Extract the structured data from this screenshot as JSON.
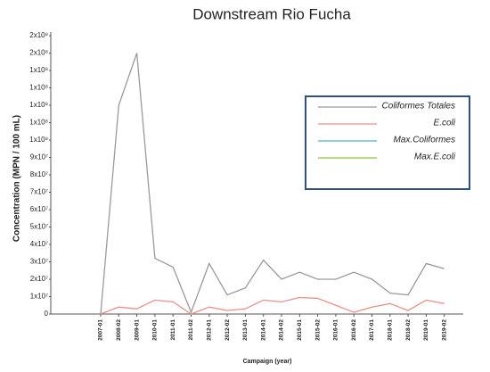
{
  "chart_data": {
    "type": "line",
    "title": "Downstream Rio Fucha",
    "x_label": "Campaign (year)",
    "y_label": "Concentration (MPN / 100 mL)",
    "categories": [
      "2007-01",
      "2008-02",
      "2009-01",
      "2010-01",
      "2011-01",
      "2011-02",
      "2012-01",
      "2012-02",
      "2013-01",
      "2014-01",
      "2014-02",
      "2015-01",
      "2015-02",
      "2016-01",
      "2016-02",
      "2017-01",
      "2018-01",
      "2018-02",
      "2019-01",
      "2019-02"
    ],
    "series": [
      {
        "name": "Coliformes Totales",
        "color": "#9a9a9a",
        "values": [
          0,
          120000000,
          150000000,
          32000000,
          27000000,
          1000000,
          29000000,
          11000000,
          15000000,
          31000000,
          20000000,
          24000000,
          20000000,
          20000000,
          24000000,
          20000000,
          12000000,
          11000000,
          29000000,
          26000000
        ]
      },
      {
        "name": "E.coli",
        "color": "#e8908c",
        "values": [
          0,
          4000000,
          3000000,
          8000000,
          7000000,
          0,
          4000000,
          2000000,
          3000000,
          8000000,
          7000000,
          9500000,
          9000000,
          5000000,
          1000000,
          4000000,
          6000000,
          2000000,
          8000000,
          6000000
        ]
      },
      {
        "name": "Max.Coliformes",
        "color": "#4fb3c4",
        "values": [
          null,
          null,
          null,
          null,
          null,
          null,
          null,
          null,
          null,
          null,
          null,
          null,
          null,
          null,
          null,
          null,
          null,
          null,
          null,
          null
        ]
      },
      {
        "name": "Max.E.coli",
        "color": "#8cc63f",
        "values": [
          null,
          null,
          null,
          null,
          null,
          null,
          null,
          null,
          null,
          null,
          null,
          null,
          null,
          null,
          null,
          null,
          null,
          null,
          null,
          null
        ]
      }
    ],
    "ylim": [
      0,
      160000000
    ],
    "yticks": [
      0,
      {
        "value": 10000000,
        "label": "1x10⁷"
      },
      {
        "value": 20000000,
        "label": "2x10⁷"
      },
      {
        "value": 30000000,
        "label": "3x10⁷"
      },
      {
        "value": 40000000,
        "label": "4x10⁷"
      },
      {
        "value": 50000000,
        "label": "5x10⁷"
      },
      {
        "value": 60000000,
        "label": "6x10⁷"
      },
      {
        "value": 70000000,
        "label": "7x10⁷"
      },
      {
        "value": 80000000,
        "label": "8x10⁷"
      },
      {
        "value": 90000000,
        "label": "9x10⁷"
      },
      {
        "value": 100000000,
        "label": "1x10⁸"
      },
      {
        "value": 110000000,
        "label": "1x10⁸"
      },
      {
        "value": 120000000,
        "label": "1x10⁸"
      },
      {
        "value": 130000000,
        "label": "1x10⁸"
      },
      {
        "value": 140000000,
        "label": "1x10⁸"
      },
      {
        "value": 150000000,
        "label": "2x10⁸"
      },
      {
        "value": 160000000,
        "label": "2x10⁸"
      }
    ],
    "grid": false,
    "legend_position": "upper right"
  }
}
